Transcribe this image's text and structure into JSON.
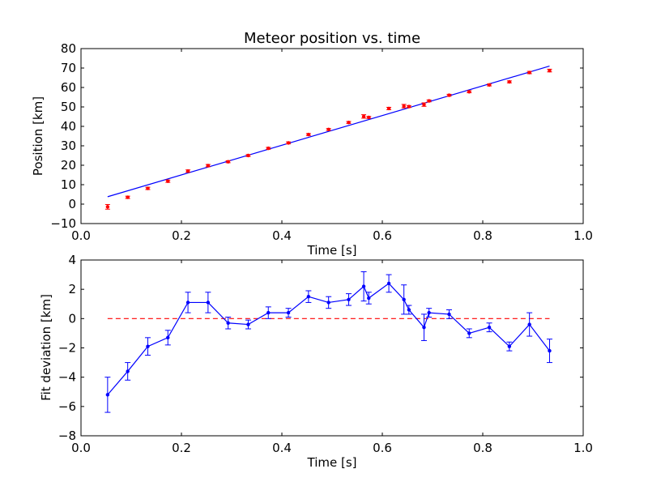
{
  "chart_data": [
    {
      "type": "scatter",
      "title": "Meteor position vs. time",
      "xlabel": "Time [s]",
      "ylabel": "Position [km]",
      "xlim": [
        0.0,
        1.0
      ],
      "ylim": [
        -10,
        80
      ],
      "x_ticks": [
        "0.0",
        "0.2",
        "0.4",
        "0.6",
        "0.8",
        "1.0"
      ],
      "y_ticks": [
        "−10",
        "0",
        "10",
        "20",
        "30",
        "40",
        "50",
        "60",
        "70",
        "80"
      ],
      "grid": false,
      "points": {
        "color": "#ff0000",
        "x": [
          0.053,
          0.093,
          0.133,
          0.173,
          0.213,
          0.253,
          0.293,
          0.333,
          0.373,
          0.413,
          0.453,
          0.493,
          0.533,
          0.563,
          0.573,
          0.613,
          0.643,
          0.653,
          0.683,
          0.693,
          0.733,
          0.773,
          0.813,
          0.853,
          0.893,
          0.933
        ],
        "y": [
          -1.4,
          3.5,
          8.1,
          11.8,
          17.0,
          19.8,
          21.8,
          25.0,
          28.7,
          31.5,
          35.8,
          38.4,
          42.0,
          45.1,
          44.6,
          49.2,
          50.4,
          50.2,
          51.2,
          53.1,
          56.0,
          57.8,
          61.3,
          62.9,
          67.7,
          68.7
        ],
        "yerr": [
          1.2,
          0.6,
          0.6,
          0.6,
          0.6,
          0.6,
          0.5,
          0.5,
          0.5,
          0.5,
          0.5,
          0.5,
          0.5,
          0.9,
          0.5,
          0.6,
          0.9,
          0.5,
          0.9,
          0.5,
          0.5,
          0.5,
          0.5,
          0.5,
          0.6,
          0.7
        ]
      },
      "fit_line": {
        "color": "#0000ff",
        "x": [
          0.053,
          0.933
        ],
        "y": [
          3.8,
          71.0
        ]
      }
    },
    {
      "type": "line",
      "xlabel": "Time [s]",
      "ylabel": "Fit deviation [km]",
      "xlim": [
        0.0,
        1.0
      ],
      "ylim": [
        -8,
        4
      ],
      "x_ticks": [
        "0.0",
        "0.2",
        "0.4",
        "0.6",
        "0.8",
        "1.0"
      ],
      "y_ticks": [
        "−8",
        "−6",
        "−4",
        "−2",
        "0",
        "2",
        "4"
      ],
      "grid": false,
      "series": {
        "color": "#0000ff",
        "x": [
          0.053,
          0.093,
          0.133,
          0.173,
          0.213,
          0.253,
          0.293,
          0.333,
          0.373,
          0.413,
          0.453,
          0.493,
          0.533,
          0.563,
          0.573,
          0.613,
          0.643,
          0.653,
          0.683,
          0.693,
          0.733,
          0.773,
          0.813,
          0.853,
          0.893,
          0.933
        ],
        "y": [
          -5.2,
          -3.6,
          -1.9,
          -1.3,
          1.1,
          1.1,
          -0.3,
          -0.4,
          0.4,
          0.4,
          1.5,
          1.1,
          1.3,
          2.2,
          1.4,
          2.4,
          1.3,
          0.6,
          -0.6,
          0.4,
          0.3,
          -1.0,
          -0.6,
          -1.9,
          -0.4,
          -2.2
        ],
        "yerr": [
          1.2,
          0.6,
          0.6,
          0.5,
          0.7,
          0.7,
          0.4,
          0.3,
          0.4,
          0.3,
          0.4,
          0.4,
          0.4,
          1.0,
          0.4,
          0.6,
          1.0,
          0.3,
          0.9,
          0.3,
          0.3,
          0.3,
          0.3,
          0.3,
          0.8,
          0.8
        ]
      },
      "reference_line": {
        "color": "#ff0000",
        "style": "dashed",
        "x": [
          0.053,
          0.933
        ],
        "y": [
          0,
          0
        ]
      }
    }
  ]
}
